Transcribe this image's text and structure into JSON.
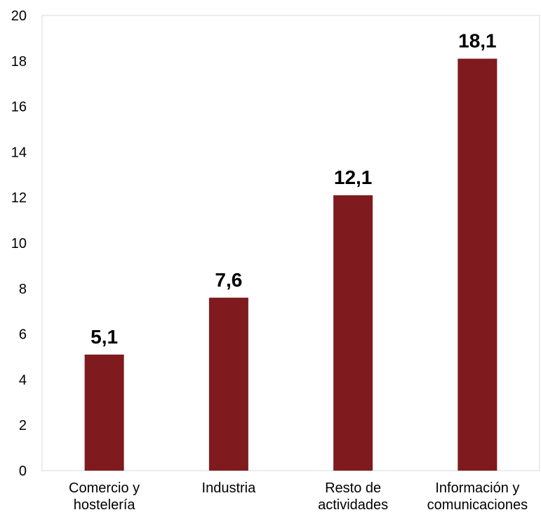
{
  "chart_data": {
    "type": "bar",
    "categories": [
      [
        "Comercio y",
        "hostelería"
      ],
      [
        "Industria"
      ],
      [
        "Resto de",
        "actividades"
      ],
      [
        "Información y",
        "comunicaciones"
      ]
    ],
    "values": [
      5.1,
      7.6,
      12.1,
      18.1
    ],
    "data_labels": [
      "5,1",
      "7,6",
      "12,1",
      "18,1"
    ],
    "ylim": [
      0,
      20
    ],
    "yticks": [
      0,
      2,
      4,
      6,
      8,
      10,
      12,
      14,
      16,
      18,
      20
    ],
    "bar_color": "#7f1a1e",
    "grid": false,
    "title": "",
    "xlabel": "",
    "ylabel": ""
  }
}
